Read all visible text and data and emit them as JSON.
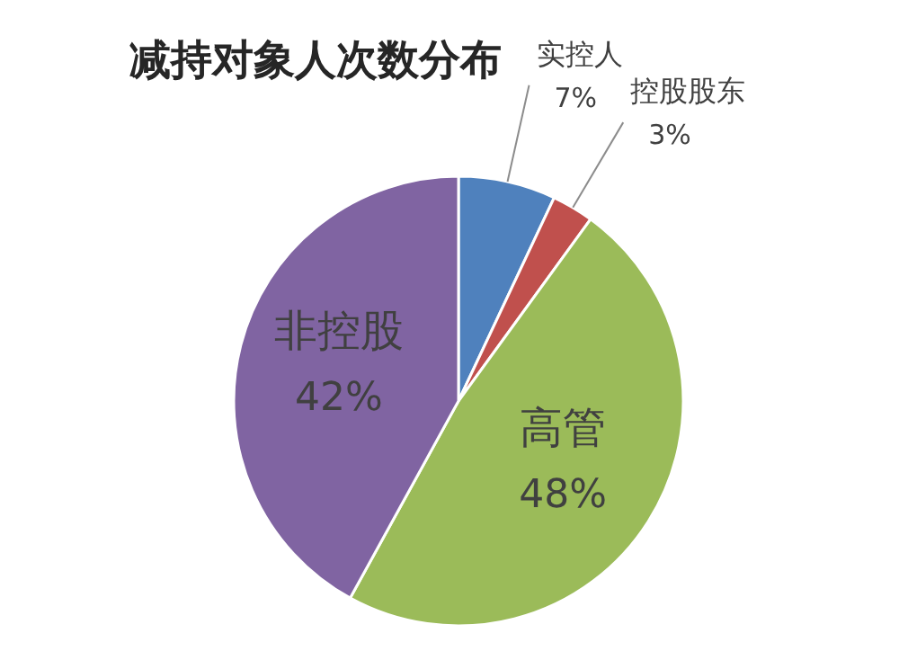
{
  "chart_data": {
    "type": "pie",
    "title": "减持对象人次数分布",
    "categories": [
      "实控人",
      "控股股东",
      "高管",
      "非控股"
    ],
    "values": [
      7,
      3,
      48,
      42
    ],
    "value_labels": [
      "7%",
      "3%",
      "48%",
      "42%"
    ],
    "colors": [
      "#4f81bd",
      "#c0504d",
      "#9bbb59",
      "#8064a2"
    ],
    "legend": false
  }
}
